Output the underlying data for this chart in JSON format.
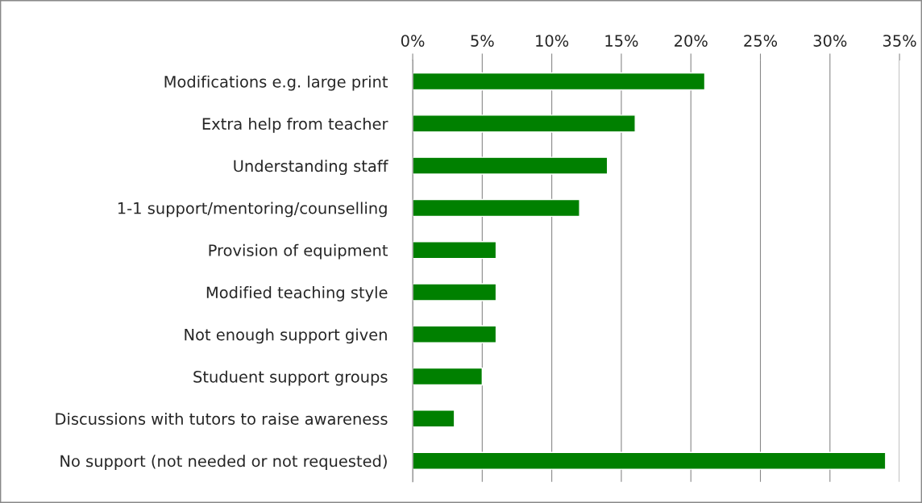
{
  "chart_data": {
    "type": "bar",
    "orientation": "horizontal",
    "categories": [
      "Modifications e.g. large print",
      "Extra help from teacher",
      "Understanding staff",
      "1-1 support/mentoring/counselling",
      "Provision of equipment",
      "Modified teaching style",
      "Not enough support given",
      "Studuent support groups",
      "Discussions with tutors to raise awareness",
      "No support (not needed or not requested)"
    ],
    "values": [
      21,
      16,
      14,
      12,
      6,
      6,
      6,
      5,
      3,
      34
    ],
    "color": "#008000",
    "xlim": [
      0,
      35
    ],
    "xticks": [
      {
        "value": 0,
        "label": "0%"
      },
      {
        "value": 5,
        "label": "5%"
      },
      {
        "value": 10,
        "label": "10%"
      },
      {
        "value": 15,
        "label": "15%"
      },
      {
        "value": 20,
        "label": "20%"
      },
      {
        "value": 25,
        "label": "25%"
      },
      {
        "value": 30,
        "label": "30%"
      },
      {
        "value": 35,
        "label": "35%"
      }
    ],
    "grid": "x",
    "legend": false
  }
}
